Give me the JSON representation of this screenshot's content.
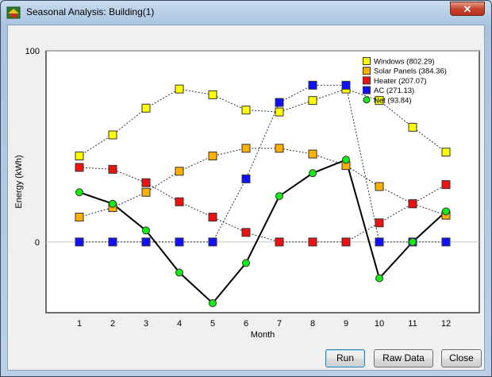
{
  "window": {
    "title": "Seasonal Analysis: Building(1)",
    "close_glyph": "✕"
  },
  "buttons": {
    "run": "Run",
    "raw_data": "Raw Data",
    "close": "Close"
  },
  "chart_data": {
    "type": "line",
    "xlabel": "Month",
    "ylabel": "Energy (kWh)",
    "ytick_labels": [
      "100",
      "0"
    ],
    "yticks": [
      100,
      0
    ],
    "ylim": [
      -37,
      100
    ],
    "xlim": [
      0,
      13
    ],
    "categories": [
      "1",
      "2",
      "3",
      "4",
      "5",
      "6",
      "7",
      "8",
      "9",
      "10",
      "11",
      "12"
    ],
    "legend_position": "top-right",
    "series": [
      {
        "name": "Windows (802.29)",
        "color": "#ffff00",
        "marker": "square",
        "line": "dotted",
        "values": [
          45,
          56,
          70,
          80,
          77,
          69,
          68,
          74,
          80,
          74,
          60,
          47
        ]
      },
      {
        "name": "Solar Panels (384.36)",
        "color": "#ffb000",
        "marker": "square",
        "line": "dotted",
        "values": [
          13,
          18,
          26,
          37,
          45,
          49,
          49,
          46,
          40,
          29,
          20,
          14
        ]
      },
      {
        "name": "Heater (207.07)",
        "color": "#ee1111",
        "marker": "square",
        "line": "dotted",
        "values": [
          39,
          38,
          31,
          21,
          13,
          5,
          0,
          0,
          0,
          10,
          20,
          30
        ]
      },
      {
        "name": "AC (271.13)",
        "color": "#1010ff",
        "marker": "square",
        "line": "dotted",
        "values": [
          0,
          0,
          0,
          0,
          0,
          33,
          73,
          82,
          82,
          0,
          0,
          0
        ]
      },
      {
        "name": "Net (93.84)",
        "color": "#11ee11",
        "marker": "circle",
        "line": "solid",
        "values": [
          26,
          20,
          6,
          -16,
          -32,
          -11,
          24,
          36,
          43,
          -19,
          0,
          16
        ]
      }
    ]
  }
}
